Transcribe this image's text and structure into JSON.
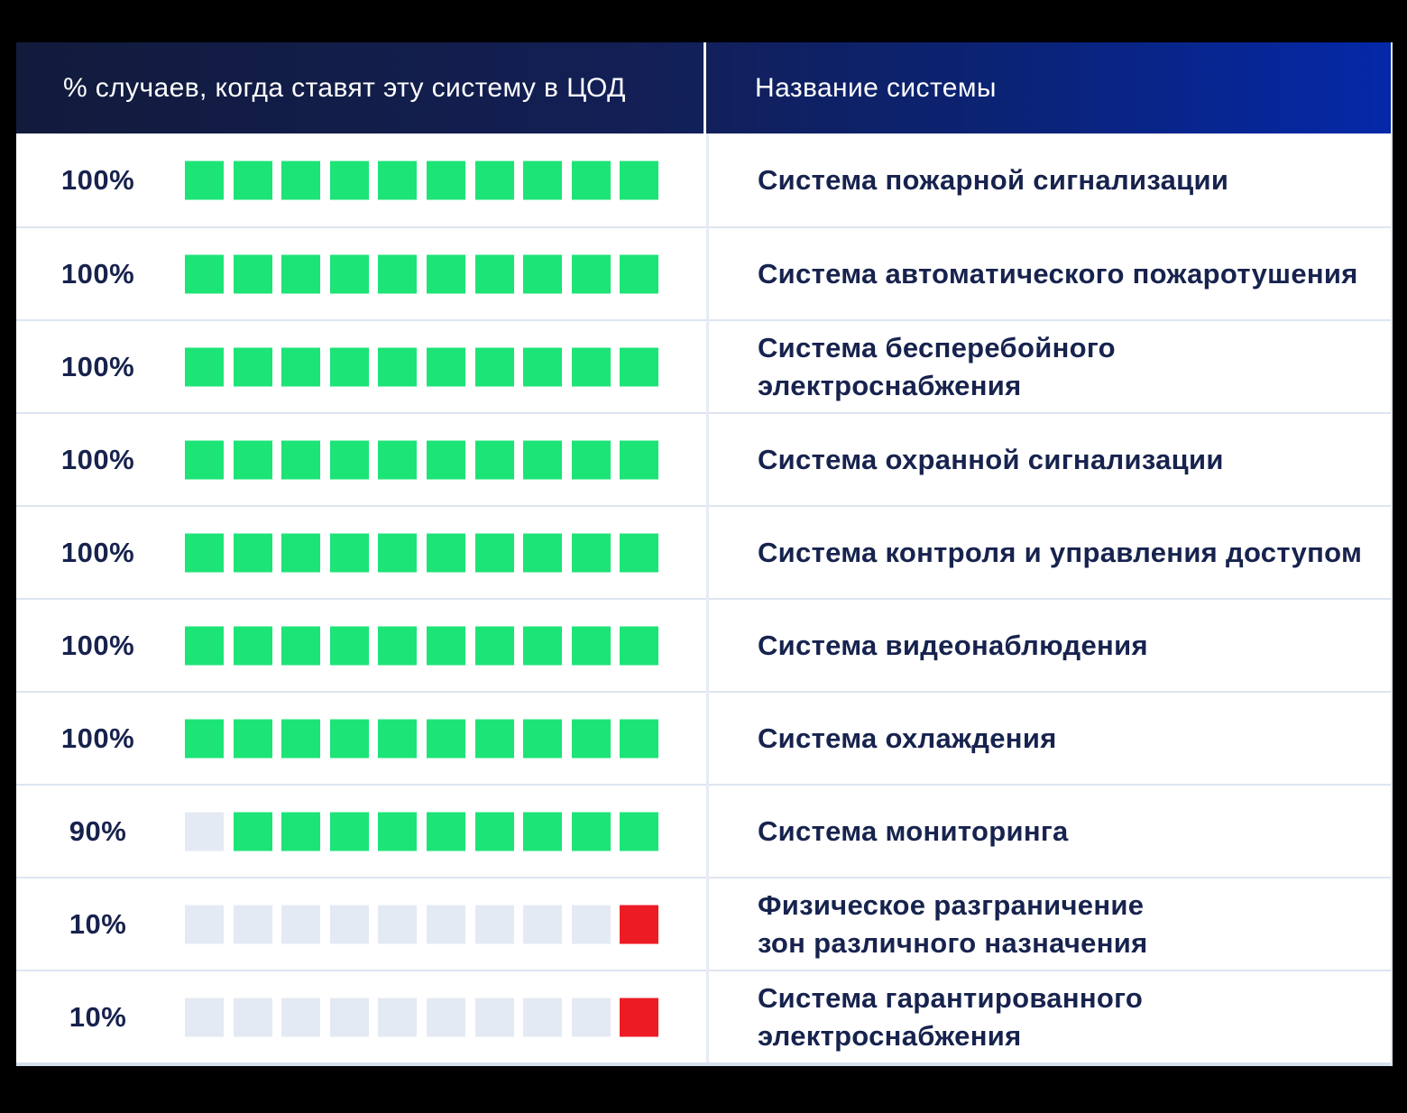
{
  "table": {
    "header": {
      "percent_column": "% случаев, когда ставят эту систему в ЦОД",
      "name_column": "Название системы"
    },
    "squares_per_row": 10,
    "empty_color": "#E4EAF3",
    "rows": [
      {
        "percent_label": "100%",
        "filled": 10,
        "fill_color": "#1CE476",
        "name": "Система пожарной сигнализации"
      },
      {
        "percent_label": "100%",
        "filled": 10,
        "fill_color": "#1CE476",
        "name": "Система автоматического пожаротушения"
      },
      {
        "percent_label": "100%",
        "filled": 10,
        "fill_color": "#1CE476",
        "name": "Система бесперебойного электроснабжения"
      },
      {
        "percent_label": "100%",
        "filled": 10,
        "fill_color": "#1CE476",
        "name": "Система охранной сигнализации"
      },
      {
        "percent_label": "100%",
        "filled": 10,
        "fill_color": "#1CE476",
        "name": "Система контроля и управления доступом"
      },
      {
        "percent_label": "100%",
        "filled": 10,
        "fill_color": "#1CE476",
        "name": "Система видеонаблюдения"
      },
      {
        "percent_label": "100%",
        "filled": 10,
        "fill_color": "#1CE476",
        "name": "Система охлаждения"
      },
      {
        "percent_label": "90%",
        "filled": 9,
        "fill_color": "#1CE476",
        "name": "Система мониторинга"
      },
      {
        "percent_label": "10%",
        "filled": 1,
        "fill_color": "#ED1C24",
        "name": "Физическое разграничение\nзон различного назначения"
      },
      {
        "percent_label": "10%",
        "filled": 1,
        "fill_color": "#ED1C24",
        "name": "Система гарантированного\nэлектроснабжения"
      }
    ]
  },
  "colors": {
    "background": "#000000",
    "header_gradient_left": "#121B3C",
    "header_gradient_right": "#0428A8",
    "header_text": "#FFFFFF",
    "body_text": "#17224D",
    "filled_green": "#1CE476",
    "filled_red": "#ED1C24",
    "empty_square": "#E4EAF3",
    "row_divider": "#DEE5F1"
  },
  "chart_data": {
    "type": "bar",
    "style": "waffle-row",
    "title": "% случаев, когда ставят эту систему в ЦОД",
    "value_axis_label": "Название системы",
    "categories": [
      "Система пожарной сигнализации",
      "Система автоматического пожаротушения",
      "Система бесперебойного электроснабжения",
      "Система охранной сигнализации",
      "Система контроля и управления доступом",
      "Система видеонаблюдения",
      "Система охлаждения",
      "Система мониторинга",
      "Физическое разграничение зон различного назначения",
      "Система гарантированного электроснабжения"
    ],
    "values": [
      100,
      100,
      100,
      100,
      100,
      100,
      100,
      90,
      10,
      10
    ],
    "unit": "%",
    "squares_per_row": 10,
    "square_value": 10,
    "xlim": [
      0,
      100
    ],
    "grid": false,
    "legend_position": "none",
    "series_colors": {
      "high": "#1CE476",
      "low": "#ED1C24",
      "empty": "#E4EAF3"
    }
  }
}
